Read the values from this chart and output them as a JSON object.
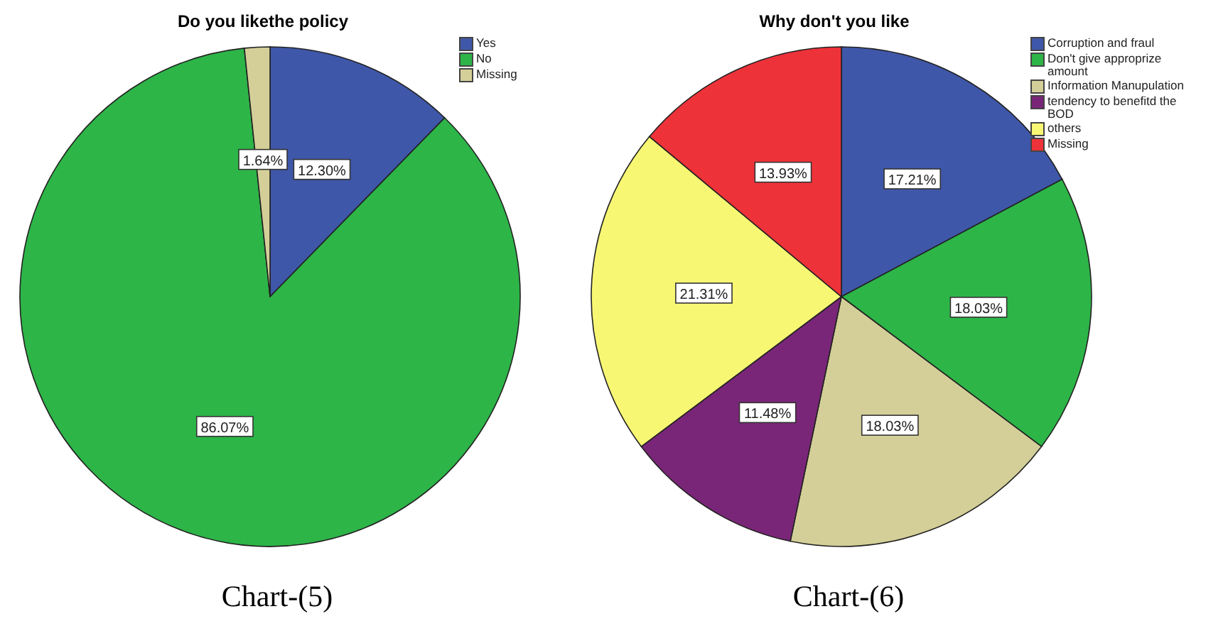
{
  "chart_data": [
    {
      "type": "pie",
      "title": "Do you likethe policy",
      "categories": [
        "Yes",
        "No",
        "Missing"
      ],
      "values": [
        12.3,
        86.07,
        1.64
      ],
      "colors": [
        "#3f57a8",
        "#2db548",
        "#d4cf98"
      ],
      "value_labels": [
        "12.30%",
        "86.07%",
        "1.64%"
      ],
      "legend": "top right",
      "annotations": [
        "Chart-(5)"
      ]
    },
    {
      "type": "pie",
      "title": "Why don't you like",
      "categories": [
        "Corruption and fraul",
        "Don't give approprize amount",
        "Information Manupulation",
        "tendency to benefitd the BOD",
        "others",
        "Missing"
      ],
      "values": [
        17.21,
        18.03,
        18.03,
        11.48,
        21.31,
        13.93
      ],
      "colors": [
        "#3f57a8",
        "#2db548",
        "#d4cf98",
        "#7a2678",
        "#f8f774",
        "#ee3239"
      ],
      "value_labels": [
        "17.21%",
        "18.03%",
        "18.03%",
        "11.48%",
        "21.31%",
        "13.93%"
      ],
      "legend": "top right",
      "annotations": [
        "Chart-(6)"
      ]
    }
  ]
}
